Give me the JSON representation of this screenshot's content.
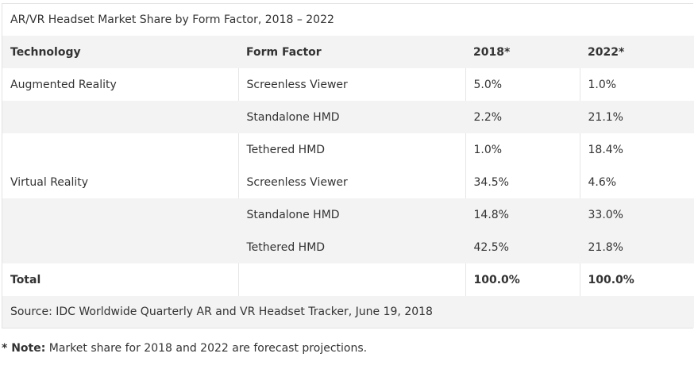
{
  "table": {
    "title": "AR/VR Headset Market Share by Form Factor, 2018 – 2022",
    "headers": [
      "Technology",
      "Form Factor",
      "2018*",
      "2022*"
    ],
    "rows": [
      [
        "Augmented Reality",
        "Screenless Viewer",
        "5.0%",
        "1.0%"
      ],
      [
        "",
        "Standalone HMD",
        "2.2%",
        "21.1%"
      ],
      [
        "",
        "Tethered HMD",
        "1.0%",
        "18.4%"
      ],
      [
        "Virtual Reality",
        "Screenless Viewer",
        "34.5%",
        "4.6%"
      ],
      [
        "",
        "Standalone HMD",
        "14.8%",
        "33.0%"
      ],
      [
        "",
        "Tethered HMD",
        "42.5%",
        "21.8%"
      ]
    ],
    "total": [
      "Total",
      "",
      "100.0%",
      "100.0%"
    ],
    "source": "Source: IDC Worldwide Quarterly AR and VR Headset Tracker, June 19, 2018"
  },
  "note": {
    "label": "* Note:",
    "text": " Market share for 2018 and 2022 are forecast projections."
  }
}
